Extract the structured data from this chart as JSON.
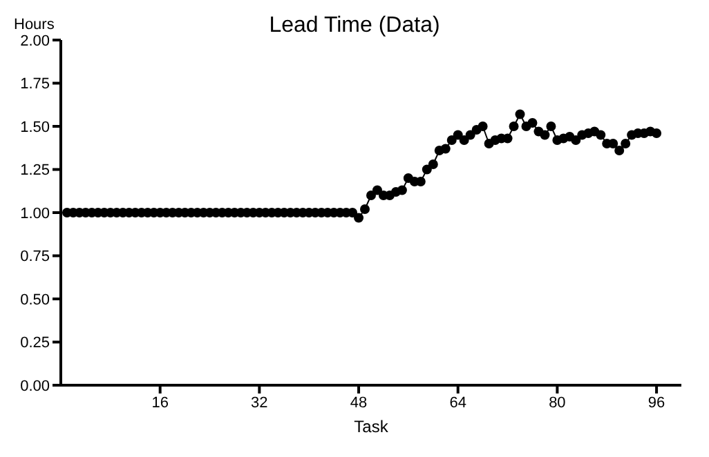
{
  "chart_data": {
    "type": "line",
    "title": "Lead Time (Data)",
    "xlabel": "Task",
    "ylabel": "Hours",
    "x": [
      1,
      2,
      3,
      4,
      5,
      6,
      7,
      8,
      9,
      10,
      11,
      12,
      13,
      14,
      15,
      16,
      17,
      18,
      19,
      20,
      21,
      22,
      23,
      24,
      25,
      26,
      27,
      28,
      29,
      30,
      31,
      32,
      33,
      34,
      35,
      36,
      37,
      38,
      39,
      40,
      41,
      42,
      43,
      44,
      45,
      46,
      47,
      48,
      49,
      50,
      51,
      52,
      53,
      54,
      55,
      56,
      57,
      58,
      59,
      60,
      61,
      62,
      63,
      64,
      65,
      66,
      67,
      68,
      69,
      70,
      71,
      72,
      73,
      74,
      75,
      76,
      77,
      78,
      79,
      80,
      81,
      82,
      83,
      84,
      85,
      86,
      87,
      88,
      89,
      90,
      91,
      92,
      93,
      94,
      95,
      96
    ],
    "series": [
      {
        "color": "#000000",
        "values": [
          1,
          1,
          1,
          1,
          1,
          1,
          1,
          1,
          1,
          1,
          1,
          1,
          1,
          1,
          1,
          1,
          1,
          1,
          1,
          1,
          1,
          1,
          1,
          1,
          1,
          1,
          1,
          1,
          1,
          1,
          1,
          1,
          1,
          1,
          1,
          1,
          1,
          1,
          1,
          1,
          1,
          1,
          1,
          1,
          1,
          1,
          1,
          0.97,
          1.02,
          1.1,
          1.13,
          1.1,
          1.1,
          1.12,
          1.13,
          1.2,
          1.18,
          1.18,
          1.25,
          1.28,
          1.36,
          1.37,
          1.42,
          1.45,
          1.42,
          1.45,
          1.48,
          1.5,
          1.4,
          1.42,
          1.43,
          1.43,
          1.5,
          1.57,
          1.5,
          1.52,
          1.47,
          1.45,
          1.5,
          1.42,
          1.43,
          1.44,
          1.42,
          1.45,
          1.46,
          1.47,
          1.45,
          1.4,
          1.4,
          1.36,
          1.4,
          1.45,
          1.46,
          1.46,
          1.47,
          1.46
        ]
      }
    ],
    "xlim": [
      0,
      100
    ],
    "xticks": [
      16,
      32,
      48,
      64,
      80,
      96
    ],
    "ylim": [
      0,
      2
    ],
    "yticks": [
      {
        "value": 0,
        "label": "0.00"
      },
      {
        "value": 0.25,
        "label": "0.25"
      },
      {
        "value": 0.5,
        "label": "0.50"
      },
      {
        "value": 0.75,
        "label": "0.75"
      },
      {
        "value": 1,
        "label": "1.00"
      },
      {
        "value": 1.25,
        "label": "1.25"
      },
      {
        "value": 1.5,
        "label": "1.50"
      },
      {
        "value": 1.75,
        "label": "1.75"
      },
      {
        "value": 2,
        "label": "2.00"
      }
    ],
    "marker": "circle",
    "line_style": "solid"
  }
}
